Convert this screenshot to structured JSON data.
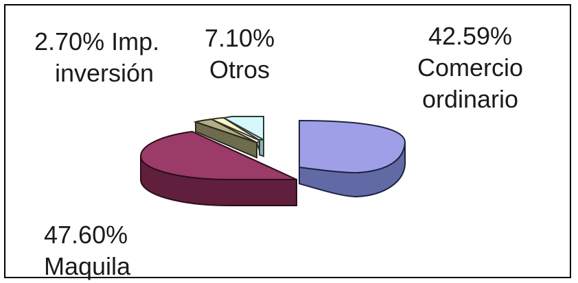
{
  "chart_data": {
    "type": "pie",
    "title": "",
    "slices": [
      {
        "percent_label": "42.59%",
        "name_lines": [
          "Comercio",
          "ordinario"
        ],
        "value": 42.59,
        "color": "#9f9fe8"
      },
      {
        "percent_label": "47.60%",
        "name_lines": [
          "Maquila"
        ],
        "value": 47.6,
        "color": "#9b3b67"
      },
      {
        "percent_label": "2.70%",
        "name_lines": [
          "Imp.",
          "inversión"
        ],
        "value": 2.7,
        "color": "#fff4c4"
      },
      {
        "percent_label": "7.10%",
        "name_lines": [
          "Otros"
        ],
        "value": 7.1,
        "color": "#d6f8fb"
      }
    ],
    "extra_slice_color": "#b3ae86"
  },
  "labels": {
    "imp": {
      "line1": "2.70% Imp.",
      "line2": "inversión"
    },
    "otros": {
      "line1": "7.10%",
      "line2": "Otros"
    },
    "comercio": {
      "line1": "42.59%",
      "line2": "Comercio",
      "line3": "ordinario"
    },
    "maquila": {
      "line1": "47.60%",
      "line2": "Maquila"
    }
  }
}
